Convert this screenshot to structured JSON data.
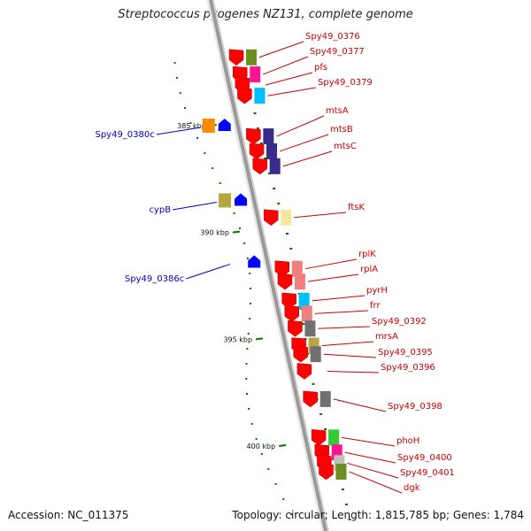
{
  "header": {
    "title": "Streptococcus pyogenes NZ131, complete genome"
  },
  "footer": {
    "accession": "Accession: NC_011375",
    "summary": "Topology: circular; Length: 1,815,785 bp; Genes: 1,784"
  },
  "colors": {
    "forward_label": "#cc0000",
    "reverse_label": "#0000cc",
    "forward_gene": "#ff0000",
    "reverse_gene": "#0000ff",
    "backbone": "#999999",
    "tick": "#007700"
  },
  "axis": {
    "unit": "kbp",
    "ticks": [
      {
        "label": "385 kbp",
        "value": 385
      },
      {
        "label": "390 kbp",
        "value": 390
      },
      {
        "label": "395 kbp",
        "value": 395
      },
      {
        "label": "400 kbp",
        "value": 400
      }
    ]
  },
  "genes": [
    {
      "name": "Spy49_0376",
      "strand": "+",
      "pos": 381.8,
      "cog": "#6b8e23"
    },
    {
      "name": "Spy49_0377",
      "strand": "+",
      "pos": 382.6,
      "cog": "#ff1493"
    },
    {
      "name": "pfs",
      "strand": "+",
      "pos": 383.1,
      "cog": ""
    },
    {
      "name": "Spy49_0379",
      "strand": "+",
      "pos": 383.6,
      "cog": "#00bfff"
    },
    {
      "name": "Spy49_0380c",
      "strand": "-",
      "pos": 385.0,
      "cog": "#ff8c00"
    },
    {
      "name": "mtsA",
      "strand": "+",
      "pos": 385.5,
      "cog": "#3a2a8a"
    },
    {
      "name": "mtsB",
      "strand": "+",
      "pos": 386.2,
      "cog": "#3a2a8a"
    },
    {
      "name": "mtsC",
      "strand": "+",
      "pos": 386.9,
      "cog": "#3a2a8a"
    },
    {
      "name": "cypB",
      "strand": "-",
      "pos": 388.5,
      "cog": "#b5a642"
    },
    {
      "name": "ftsK",
      "strand": "+",
      "pos": 389.3,
      "cog": "#f5e6a0"
    },
    {
      "name": "Spy49_0386c",
      "strand": "-",
      "pos": 391.4,
      "cog": ""
    },
    {
      "name": "rplK",
      "strand": "+",
      "pos": 391.7,
      "cog": "#f08080"
    },
    {
      "name": "rplA",
      "strand": "+",
      "pos": 392.3,
      "cog": "#f08080"
    },
    {
      "name": "pyrH",
      "strand": "+",
      "pos": 393.2,
      "cog": "#00bfff"
    },
    {
      "name": "frr",
      "strand": "+",
      "pos": 393.8,
      "cog": "#f08080"
    },
    {
      "name": "Spy49_0392",
      "strand": "+",
      "pos": 394.5,
      "cog": "#707070"
    },
    {
      "name": "mrsA",
      "strand": "+",
      "pos": 395.3,
      "cog": "#b5a642"
    },
    {
      "name": "Spy49_0395",
      "strand": "+",
      "pos": 395.7,
      "cog": "#707070"
    },
    {
      "name": "Spy49_0396",
      "strand": "+",
      "pos": 396.5,
      "cog": ""
    },
    {
      "name": "Spy49_0398",
      "strand": "+",
      "pos": 397.8,
      "cog": "#707070"
    },
    {
      "name": "phoH",
      "strand": "+",
      "pos": 399.6,
      "cog": "#32cd32"
    },
    {
      "name": "Spy49_0400",
      "strand": "+",
      "pos": 400.3,
      "cog": "#ff1493"
    },
    {
      "name": "Spy49_0401",
      "strand": "+",
      "pos": 400.8,
      "cog": "#c0c0c0"
    },
    {
      "name": "dgk",
      "strand": "+",
      "pos": 401.2,
      "cog": "#6b8e23"
    }
  ]
}
